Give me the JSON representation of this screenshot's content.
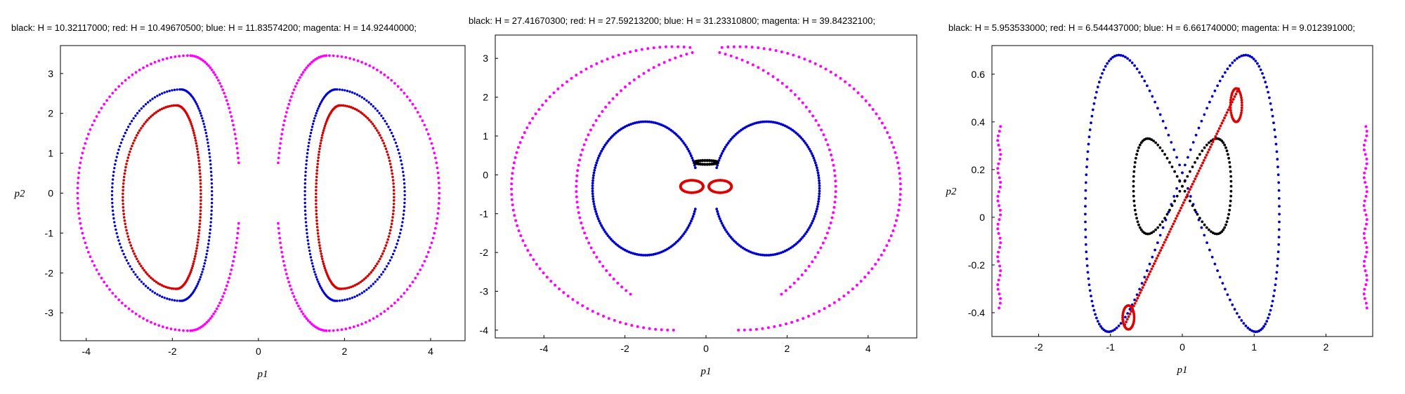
{
  "chart_data": [
    {
      "type": "scatter",
      "title": "black: H = 10.32117000;  red: H = 10.49670500;  blue: H = 11.83574200;  magenta: H = 14.92440000;",
      "xlabel": "p1",
      "ylabel": "p2",
      "xlim": [
        -4.6,
        4.8
      ],
      "ylim": [
        -3.7,
        3.7
      ],
      "xticks": [
        "-4",
        "-2",
        "0",
        "2",
        "4"
      ],
      "yticks": [
        "3",
        "2",
        "1",
        "0",
        "-1",
        "-2",
        "-3"
      ],
      "series": [
        {
          "color": "#000000",
          "shape": "twin-oval",
          "cx": 1.9,
          "rx": 1.25,
          "ry": 2.3,
          "cy": -0.1
        },
        {
          "color": "#dd0000",
          "shape": "twin-oval",
          "cx": 1.9,
          "rx": 1.25,
          "ry": 2.3,
          "cy": -0.1
        },
        {
          "color": "#0000cc",
          "shape": "twin-oval",
          "cx": 1.8,
          "rx": 1.6,
          "ry": 2.65,
          "cy": -0.05
        },
        {
          "color": "#ff00ff",
          "shape": "twin-oval",
          "cx": 1.6,
          "rx": 2.6,
          "ry": 3.45,
          "cy": 0.0
        }
      ]
    },
    {
      "type": "scatter",
      "title": "black: H = 27.41670300;  red: H = 27.59213200;  blue: H = 31.23310800;  magenta: H = 39.84232100;",
      "xlabel": "p1",
      "ylabel": "p2",
      "xlim": [
        -5.2,
        5.2
      ],
      "ylim": [
        -4.2,
        3.6
      ],
      "xticks": [
        "-4",
        "-2",
        "0",
        "2",
        "4"
      ],
      "yticks": [
        "3",
        "2",
        "1",
        "0",
        "-1",
        "-2",
        "-3",
        "-4"
      ],
      "series": [
        {
          "color": "#000000",
          "shape": "blob",
          "cx": 0.0,
          "cy": 0.32
        },
        {
          "color": "#dd0000",
          "shape": "bow",
          "cx": 0.35,
          "cy": -0.3
        },
        {
          "color": "#0000cc",
          "shape": "heart",
          "scale": 1.0
        },
        {
          "color": "#ff00ff",
          "shape": "heart",
          "scale": 1.0
        }
      ]
    },
    {
      "type": "scatter",
      "title": "black: H = 5.953533000;  red: H = 6.544437000;  blue: H = 6.661740000;  magenta: H = 9.012391000;",
      "xlabel": "p1",
      "ylabel": "p2",
      "xlim": [
        -2.65,
        2.65
      ],
      "ylim": [
        -0.5,
        0.72
      ],
      "xticks": [
        "-2",
        "-1",
        "0",
        "1",
        "2"
      ],
      "yticks": [
        "0.6",
        "0.4",
        "0.2",
        "0",
        "-0.2",
        "-0.4"
      ],
      "series": [
        {
          "color": "#000000",
          "shape": "figure-eight"
        },
        {
          "color": "#dd0000",
          "shape": "diagonal"
        },
        {
          "color": "#0000cc",
          "shape": "butterfly"
        },
        {
          "color": "#ff00ff",
          "shape": "side-strips"
        }
      ]
    }
  ]
}
